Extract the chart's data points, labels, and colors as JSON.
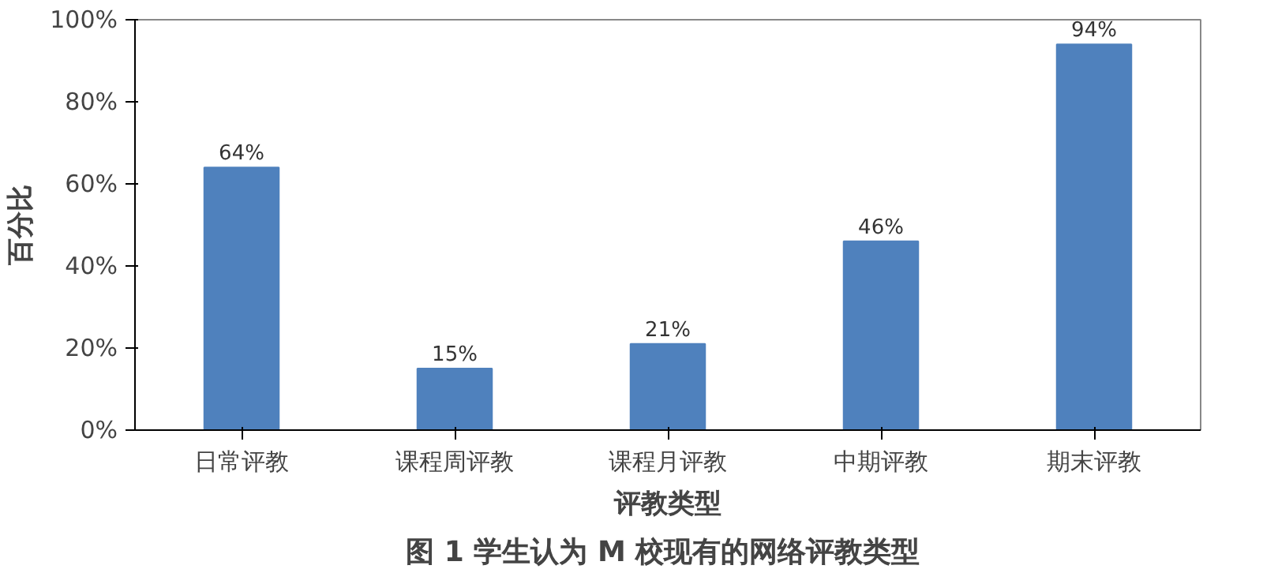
{
  "chart_data": {
    "type": "bar",
    "title": "图 1  学生认为 M 校现有的网络评教类型",
    "xlabel": "评教类型",
    "ylabel": "百分比",
    "categories": [
      "日常评教",
      "课程周评教",
      "课程月评教",
      "中期评教",
      "期末评教"
    ],
    "values": [
      64,
      15,
      21,
      46,
      94
    ],
    "value_labels": [
      "64%",
      "15%",
      "21%",
      "46%",
      "94%"
    ],
    "color": "#4f81bd",
    "ylim": [
      0,
      100
    ],
    "yticks": [
      {
        "value": 0,
        "label": "0%"
      },
      {
        "value": 20,
        "label": "20%"
      },
      {
        "value": 40,
        "label": "40%"
      },
      {
        "value": 60,
        "label": "60%"
      },
      {
        "value": 80,
        "label": "80%"
      },
      {
        "value": 100,
        "label": "100%"
      }
    ],
    "grid": false
  }
}
